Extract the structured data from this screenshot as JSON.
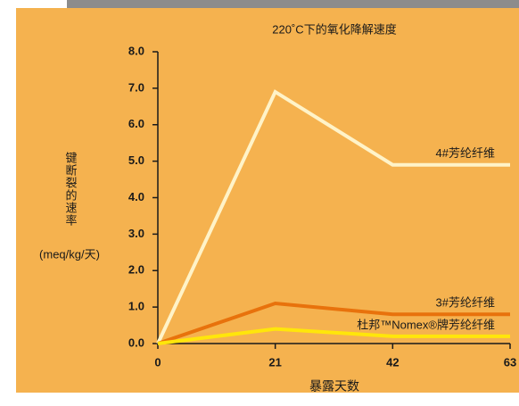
{
  "chart_data": {
    "type": "line",
    "title": "220˚C下的氧化降解速度",
    "x_label": "暴露天数",
    "y_label": "键断裂的速率",
    "y_unit": "(meq/kg/天)",
    "x": [
      0,
      21,
      42,
      63
    ],
    "xlim": [
      0,
      63
    ],
    "xticks": [
      0,
      21,
      42,
      63
    ],
    "ylim": [
      0,
      8
    ],
    "yticks": [
      {
        "value": 0,
        "label": "0.0"
      },
      {
        "value": 1,
        "label": "1.0"
      },
      {
        "value": 2,
        "label": "2.0"
      },
      {
        "value": 3,
        "label": "3.0"
      },
      {
        "value": 4,
        "label": "4.0"
      },
      {
        "value": 5,
        "label": "5.0"
      },
      {
        "value": 6,
        "label": "6.0"
      },
      {
        "value": 7,
        "label": "7.0"
      },
      {
        "value": 8,
        "label": "8.0"
      }
    ],
    "series": [
      {
        "name": "4#芳纶纤维",
        "color": "#fff3c8",
        "values": [
          0,
          6.9,
          4.9,
          4.9
        ]
      },
      {
        "name": "3#芳纶纤维",
        "color": "#e8720c",
        "values": [
          0,
          1.1,
          0.8,
          0.8
        ]
      },
      {
        "name": "杜邦™Nomex®牌芳纶纤维",
        "color": "#ffe60a",
        "values": [
          0,
          0.4,
          0.2,
          0.2
        ]
      }
    ]
  }
}
